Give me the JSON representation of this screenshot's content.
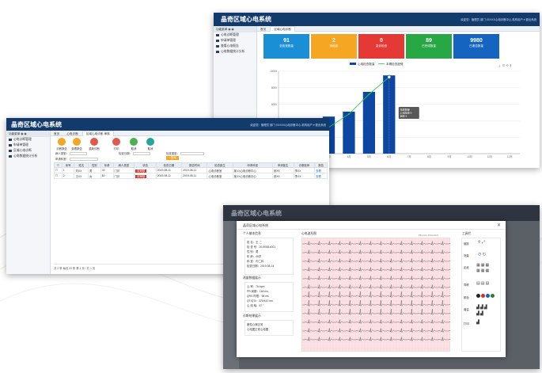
{
  "colors": {
    "brand_navy": "#123a6b",
    "stat_blue": "#1a8fd5",
    "stat_orange": "#f5a623",
    "stat_red": "#e53935",
    "stat_green": "#28a745",
    "stat_darkblue": "#1565c0",
    "bar_blue": "#0d47a1",
    "line_green": "#2ecc40",
    "ecg_pink": "#fbe3e6"
  },
  "back_window": {
    "title": "晶奇区域心电系统",
    "userinfo": "欢迎您：管理员 部门:XXXXX心电诊断中心  机构用户 ▾  退出系统",
    "sidebar": {
      "head": "功能菜单",
      "items": [
        "心电诊断管理",
        "申请单管理",
        "查看心电报告",
        "心电数据统计分析"
      ]
    },
    "tabs": [
      "首页",
      "区域心电诊断"
    ],
    "stats": [
      {
        "num": "91",
        "label": "总检查数量"
      },
      {
        "num": "2",
        "label": "待检查"
      },
      {
        "num": "0",
        "label": "急诊检查"
      },
      {
        "num": "89",
        "label": "已完成数量"
      },
      {
        "num": "9980",
        "label": "已报告数量"
      }
    ],
    "legend": [
      "心电检查数量",
      "本期检查趋势"
    ],
    "tooltip": {
      "title": "检查数量",
      "line1": "心电检查:9",
      "line2": "趋势:9"
    }
  },
  "chart_data": {
    "type": "bar",
    "title": "",
    "xlabel": "",
    "ylabel": "",
    "categories": [
      "1月",
      "2月",
      "3月",
      "4月",
      "5月",
      "6月",
      "7月",
      "8月",
      "9月",
      "10月",
      "11月",
      "12月"
    ],
    "series": [
      {
        "name": "心电检查数量",
        "values": [
          1200,
          3700,
          4500,
          5100,
          7500,
          9500,
          0,
          0,
          0,
          0,
          0,
          0
        ]
      },
      {
        "name": "本期检查趋势",
        "values": [
          600,
          1600,
          3200,
          4800,
          7200,
          9300,
          null,
          null,
          null,
          null,
          null,
          null
        ]
      }
    ],
    "ylim": [
      0,
      10000
    ],
    "yticks": [
      "0",
      "2000",
      "4000",
      "6000",
      "8000",
      "10000"
    ],
    "grid": true,
    "legend": "top"
  },
  "front_window": {
    "title": "晶奇区域心电系统",
    "userinfo": "欢迎您：管理员 部门:XXXXX心电诊断中心  机构用户 ▾  退出系统",
    "sidebar": {
      "head": "功能菜单",
      "items": [
        "心电诊断管理",
        "申请单管理",
        "区域心电诊断",
        "心电数据统计分析"
      ]
    },
    "tabs": [
      "首页",
      "心电诊断",
      "区域心电诊断-审核"
    ],
    "toolbar": [
      "诊断报告",
      "查看报告",
      "重新诊断",
      "打印",
      "取消"
    ],
    "filters": {
      "f1": "病人类型：",
      "f2": "检查日期：",
      "f3": "申请科室：",
      "f4": "检查类型：",
      "search": "查询"
    },
    "table_headers": [
      "序号",
      "姓名",
      "性别",
      "年龄",
      "病人类型",
      "状态",
      "检查日期",
      "报告时间",
      "检查医生",
      "申请科室",
      "申请医生",
      "诊断医师",
      "报告"
    ],
    "rows": [
      [
        "1",
        "刘XX",
        "男",
        "43",
        "门诊",
        "待审核",
        "2019-08-11",
        "2019-08-11",
        "心电诊断室",
        "某XX心电诊断中心",
        "张XX",
        "李XX",
        "查看"
      ],
      [
        "2",
        "王XX",
        "女",
        "50",
        "门诊",
        "待审核",
        "2019-08-11",
        "2019-08-11",
        "心电诊断室",
        "某XX心电诊断中心",
        "张XX",
        "李XX",
        "查看"
      ]
    ],
    "pager": "共 2 条  每页 20 条  第 1 页 / 共 1 页"
  },
  "modal_window": {
    "bg_title": "晶奇区域心电系统",
    "title": "晶奇区域心电系统",
    "patient_title": "个人基本信息",
    "patient_info": [
      "姓 名：王 二",
      "检 查 号：20190814001",
      "性 别：男",
      "年 龄：46岁",
      "科 室：内二科",
      "检查日期：2019-08-14"
    ],
    "measure_title": "测量数据展示",
    "measure_info": [
      "心 率：76 bpm",
      "PR 间期：164 ms",
      "QRS 时限：98 ms",
      "QT/QTc：370/410 ms",
      "心 电 轴：67 °"
    ],
    "diag_title": "诊断结果展示",
    "diag_info": [
      "窦性心律正常",
      "心电图正常心电图"
    ],
    "ecg_title": "心电波形图",
    "ecg_speed": "25mm/s 10mm/mV",
    "tools_title": "工具栏",
    "tools": [
      "缩放",
      "测量",
      "走纸",
      "导联",
      "颜色",
      "增益",
      "打印"
    ],
    "close": "✕"
  }
}
